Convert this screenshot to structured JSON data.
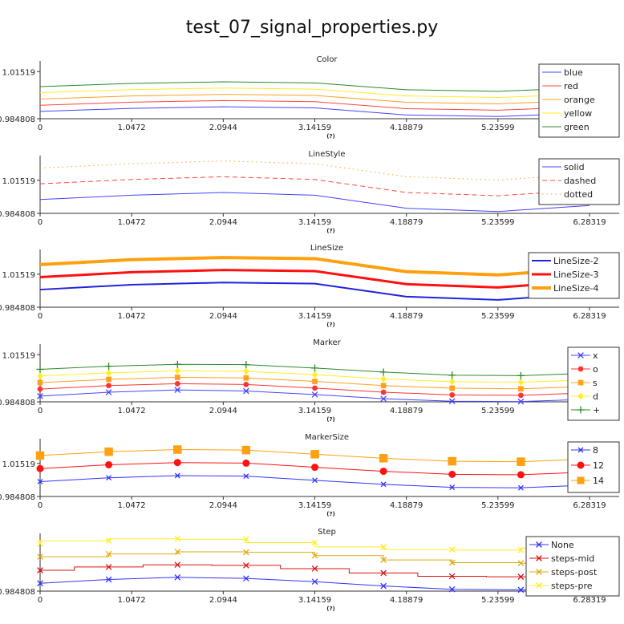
{
  "page": {
    "title": "test_07_signal_properties.py"
  },
  "chart_data": [
    {
      "type": "line",
      "title": "Color",
      "xlabel": "(?)",
      "x": [
        0,
        1.0472,
        2.0944,
        3.14159,
        4.18879,
        5.23599,
        6.28319
      ],
      "x_ticks": [
        "0",
        "1.0472",
        "2.0944",
        "3.14159",
        "4.18879",
        "5.23599",
        "6.28319"
      ],
      "y_ticks": [
        "0.984808",
        "1.01519"
      ],
      "y_tick_values": [
        0.984808,
        1.01519
      ],
      "ylim": [
        0.984808,
        1.02
      ],
      "legend_position": "right",
      "series": [
        {
          "name": "blue",
          "color": "#4444ff",
          "style": "solid",
          "width": 1,
          "marker": "none",
          "values": [
            0.9895,
            0.9915,
            0.9925,
            0.9918,
            0.9872,
            0.9862,
            0.9885
          ]
        },
        {
          "name": "red",
          "color": "#ff4444",
          "style": "solid",
          "width": 1,
          "marker": "none",
          "values": [
            0.9935,
            0.9955,
            0.9965,
            0.9958,
            0.9913,
            0.9903,
            0.9926
          ]
        },
        {
          "name": "orange",
          "color": "#ffa020",
          "style": "solid",
          "width": 1,
          "marker": "none",
          "values": [
            0.9975,
            0.9995,
            1.0005,
            0.9998,
            0.9954,
            0.9944,
            0.9967
          ]
        },
        {
          "name": "yellow",
          "color": "#ffee22",
          "style": "solid",
          "width": 1,
          "marker": "none",
          "values": [
            1.0016,
            1.0036,
            1.0046,
            1.0039,
            0.9995,
            0.9985,
            1.0008
          ]
        },
        {
          "name": "green",
          "color": "#2a8a2a",
          "style": "solid",
          "width": 1,
          "marker": "none",
          "values": [
            1.0055,
            1.0076,
            1.0086,
            1.0079,
            1.0035,
            1.0025,
            1.0048
          ]
        }
      ]
    },
    {
      "type": "line",
      "title": "LineStyle",
      "xlabel": "(?)",
      "x": [
        0,
        1.0472,
        2.0944,
        3.14159,
        4.18879,
        5.23599,
        6.28319
      ],
      "x_ticks": [
        "0",
        "1.0472",
        "2.0944",
        "3.14159",
        "4.18879",
        "5.23599",
        "6.28319"
      ],
      "y_ticks": [
        "0.984808",
        "1.01519"
      ],
      "y_tick_values": [
        0.984808,
        1.01519
      ],
      "ylim": [
        0.984808,
        1.035
      ],
      "legend_position": "right",
      "series": [
        {
          "name": "solid",
          "color": "#4444ff",
          "style": "solid",
          "width": 1,
          "marker": "none",
          "values": [
            0.9975,
            1.0015,
            1.004,
            1.0015,
            0.9895,
            0.9865,
            0.992
          ]
        },
        {
          "name": "dashed",
          "color": "#ff4444",
          "style": "dashed",
          "width": 1,
          "marker": "none",
          "values": [
            1.012,
            1.016,
            1.0185,
            1.016,
            1.004,
            1.001,
            1.0065
          ]
        },
        {
          "name": "dotted",
          "color": "#ffa020",
          "style": "dotted",
          "width": 1,
          "marker": "none",
          "values": [
            1.0265,
            1.0305,
            1.033,
            1.0305,
            1.0185,
            1.0155,
            1.021
          ]
        }
      ]
    },
    {
      "type": "line",
      "title": "LineSize",
      "xlabel": "(?)",
      "x": [
        0,
        1.0472,
        2.0944,
        3.14159,
        4.18879,
        5.23599,
        6.28319
      ],
      "x_ticks": [
        "0",
        "1.0472",
        "2.0944",
        "3.14159",
        "4.18879",
        "5.23599",
        "6.28319"
      ],
      "y_ticks": [
        "0.984808",
        "1.01519"
      ],
      "y_tick_values": [
        0.984808,
        1.01519
      ],
      "ylim": [
        0.984808,
        1.035
      ],
      "legend_position": "right",
      "series": [
        {
          "name": "LineSize-2",
          "color": "#2222dd",
          "style": "solid",
          "width": 2,
          "marker": "none",
          "values": [
            1.001,
            1.0055,
            1.0075,
            1.0065,
            0.9945,
            0.9915,
            0.9975
          ]
        },
        {
          "name": "LineSize-3",
          "color": "#ff1111",
          "style": "solid",
          "width": 3,
          "marker": "none",
          "values": [
            1.0125,
            1.017,
            1.019,
            1.018,
            1.006,
            1.003,
            1.009
          ]
        },
        {
          "name": "LineSize-4",
          "color": "#ffa010",
          "style": "solid",
          "width": 4,
          "marker": "none",
          "values": [
            1.024,
            1.0285,
            1.0305,
            1.0295,
            1.0175,
            1.0145,
            1.0205
          ]
        }
      ]
    },
    {
      "type": "line",
      "title": "Marker",
      "xlabel": "(?)",
      "x": [
        0,
        0.785,
        1.571,
        2.356,
        3.142,
        3.927,
        4.712,
        5.498,
        6.283
      ],
      "x_ticks": [
        "0",
        "1.0472",
        "2.0944",
        "3.14159",
        "4.18879",
        "5.23599",
        "6.28319"
      ],
      "x_tick_values": [
        0,
        1.0472,
        2.0944,
        3.14159,
        4.18879,
        5.23599,
        6.28319
      ],
      "y_ticks": [
        "0.984808",
        "1.01519"
      ],
      "y_tick_values": [
        0.984808,
        1.01519
      ],
      "ylim": [
        0.984808,
        1.02
      ],
      "legend_position": "right",
      "series": [
        {
          "name": "x",
          "color": "#4444ff",
          "style": "solid",
          "width": 1,
          "marker": "x",
          "values": [
            0.9885,
            0.991,
            0.9925,
            0.9918,
            0.9895,
            0.9868,
            0.9852,
            0.985,
            0.9865
          ]
        },
        {
          "name": "o",
          "color": "#ff3333",
          "style": "solid",
          "width": 1,
          "marker": "o",
          "values": [
            0.993,
            0.9953,
            0.9965,
            0.996,
            0.9937,
            0.991,
            0.9893,
            0.989,
            0.9906
          ]
        },
        {
          "name": "s",
          "color": "#ffa020",
          "style": "solid",
          "width": 1,
          "marker": "s",
          "values": [
            0.9972,
            0.9993,
            1.0006,
            1.0002,
            0.998,
            0.9953,
            0.9936,
            0.9932,
            0.9948
          ]
        },
        {
          "name": "d",
          "color": "#ffee22",
          "style": "solid",
          "width": 1,
          "marker": "d",
          "values": [
            1.0015,
            1.0035,
            1.0048,
            1.0045,
            1.0023,
            0.9996,
            0.9978,
            0.9975,
            0.999
          ]
        },
        {
          "name": "+",
          "color": "#2a8a2a",
          "style": "solid",
          "width": 1,
          "marker": "+",
          "values": [
            1.0058,
            1.0078,
            1.009,
            1.0088,
            1.0066,
            1.004,
            1.002,
            1.0017,
            1.0033
          ]
        }
      ]
    },
    {
      "type": "line",
      "title": "MarkerSize",
      "xlabel": "(?)",
      "x": [
        0,
        0.785,
        1.571,
        2.356,
        3.142,
        3.927,
        4.712,
        5.498,
        6.283
      ],
      "x_ticks": [
        "0",
        "1.0472",
        "2.0944",
        "3.14159",
        "4.18879",
        "5.23599",
        "6.28319"
      ],
      "x_tick_values": [
        0,
        1.0472,
        2.0944,
        3.14159,
        4.18879,
        5.23599,
        6.28319
      ],
      "y_ticks": [
        "0.984808",
        "1.01519"
      ],
      "y_tick_values": [
        0.984808,
        1.01519
      ],
      "ylim": [
        0.984808,
        1.035
      ],
      "legend_position": "right",
      "series": [
        {
          "name": "8",
          "color": "#3333ff",
          "style": "solid",
          "width": 1,
          "marker": "x",
          "marker_size": 8,
          "values": [
            0.9985,
            1.002,
            1.004,
            1.0035,
            0.9997,
            0.996,
            0.9932,
            0.9928,
            0.9953
          ]
        },
        {
          "name": "12",
          "color": "#ff1111",
          "style": "solid",
          "width": 1,
          "marker": "o",
          "marker_size": 12,
          "values": [
            1.0105,
            1.014,
            1.016,
            1.0155,
            1.0117,
            1.008,
            1.0052,
            1.0048,
            1.0073
          ]
        },
        {
          "name": "14",
          "color": "#ffa010",
          "style": "solid",
          "width": 1,
          "marker": "s",
          "marker_size": 14,
          "values": [
            1.0225,
            1.026,
            1.028,
            1.0275,
            1.0237,
            1.02,
            1.0172,
            1.0168,
            1.0193
          ]
        }
      ]
    },
    {
      "type": "line",
      "title": "Step",
      "xlabel": "(?)",
      "x": [
        0,
        0.785,
        1.571,
        2.356,
        3.142,
        3.927,
        4.712,
        5.498,
        6.283
      ],
      "x_ticks": [
        "0",
        "1.0472",
        "2.0944",
        "3.14159",
        "4.18879",
        "5.23599",
        "6.28319"
      ],
      "x_tick_values": [
        0,
        1.0472,
        2.0944,
        3.14159,
        4.18879,
        5.23599,
        6.28319
      ],
      "y_ticks": [
        "0.984808"
      ],
      "y_tick_values": [
        0.984808
      ],
      "ylim": [
        0.984808,
        1.035
      ],
      "legend_position": "right",
      "series": [
        {
          "name": "None",
          "color": "#3333ff",
          "style": "solid",
          "width": 1,
          "marker": "x",
          "step": "none",
          "values": [
            0.992,
            0.9955,
            0.9975,
            0.9965,
            0.9935,
            0.9895,
            0.9865,
            0.986,
            0.9885
          ]
        },
        {
          "name": "steps-mid",
          "color": "#dd1111",
          "style": "solid",
          "width": 1,
          "marker": "x",
          "step": "mid",
          "values": [
            1.004,
            1.007,
            1.009,
            1.0085,
            1.0055,
            1.0015,
            0.9985,
            0.998,
            1.0005
          ]
        },
        {
          "name": "steps-post",
          "color": "#ddaa10",
          "style": "solid",
          "width": 1,
          "marker": "x",
          "step": "post",
          "values": [
            1.0165,
            1.019,
            1.021,
            1.0205,
            1.0175,
            1.0135,
            1.011,
            1.0105,
            1.0125
          ]
        },
        {
          "name": "steps-pre",
          "color": "#ffee22",
          "style": "solid",
          "width": 1,
          "marker": "x",
          "step": "pre",
          "values": [
            1.0285,
            1.031,
            1.033,
            1.0325,
            1.0295,
            1.0255,
            1.023,
            1.0225,
            1.0245
          ]
        }
      ]
    }
  ]
}
